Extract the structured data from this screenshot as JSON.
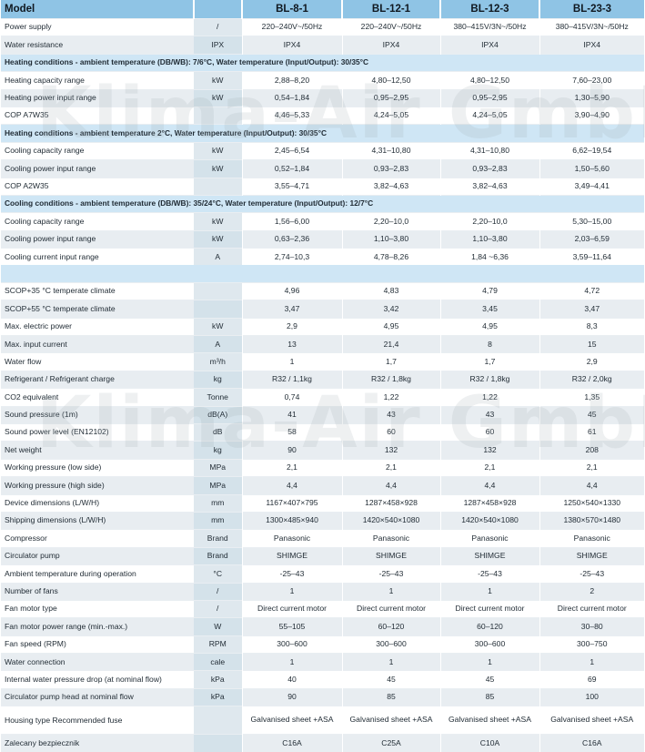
{
  "columns": [
    "Model",
    "",
    "BL-8-1",
    "BL-12-1",
    "BL-12-3",
    "BL-23-3"
  ],
  "watermark": "Klima-Air GmbH",
  "rows": [
    {
      "type": "row",
      "name": "Power supply",
      "unit": "/",
      "values": [
        "220–240V~/50Hz",
        "220–240V~/50Hz",
        "380–415V/3N~/50Hz",
        "380–415V/3N~/50Hz"
      ]
    },
    {
      "type": "row",
      "name": "Water resistance",
      "unit": "IPX",
      "values": [
        "IPX4",
        "IPX4",
        "IPX4",
        "IPX4"
      ]
    },
    {
      "type": "section",
      "text": "Heating conditions - ambient temperature (DB/WB): 7/6°C, Water temperature (Input/Output): 30/35°C"
    },
    {
      "type": "row",
      "name": "Heating capacity range",
      "unit": "kW",
      "values": [
        "2,88–8,20",
        "4,80–12,50",
        "4,80–12,50",
        "7,60–23,00"
      ]
    },
    {
      "type": "row",
      "name": "Heating power input range",
      "unit": "kW",
      "values": [
        "0,54–1,84",
        "0,95–2,95",
        "0,95–2,95",
        "1,30–5,90"
      ]
    },
    {
      "type": "row",
      "name": "COP A7W35",
      "unit": "",
      "values": [
        "4,46–5,33",
        "4,24–5,05",
        "4,24–5,05",
        "3,90–4,90"
      ]
    },
    {
      "type": "section",
      "text": "Heating conditions - ambient temperature 2°C, Water temperature (Input/Output): 30/35°C"
    },
    {
      "type": "row",
      "name": "Cooling capacity range",
      "unit": "kW",
      "values": [
        "2,45–6,54",
        "4,31–10,80",
        "4,31–10,80",
        "6,62–19,54"
      ]
    },
    {
      "type": "row",
      "name": "Cooling power input range",
      "unit": "kW",
      "values": [
        "0,52–1,84",
        "0,93–2,83",
        "0,93–2,83",
        "1,50–5,60"
      ]
    },
    {
      "type": "row",
      "name": "COP A2W35",
      "unit": "",
      "values": [
        "3,55–4,71",
        "3,82–4,63",
        "3,82–4,63",
        "3,49–4,41"
      ]
    },
    {
      "type": "section",
      "text": "Cooling conditions - ambient temperature (DB/WB): 35/24°C, Water temperature (Input/Output): 12/7°C"
    },
    {
      "type": "row",
      "name": "Cooling capacity range",
      "unit": "kW",
      "values": [
        "1,56–6,00",
        "2,20–10,0",
        "2,20–10,0",
        "5,30–15,00"
      ]
    },
    {
      "type": "row",
      "name": "Cooling power input range",
      "unit": "kW",
      "values": [
        "0,63–2,36",
        "1,10–3,80",
        "1,10–3,80",
        "2,03–6,59"
      ]
    },
    {
      "type": "row",
      "name": "Cooling current input range",
      "unit": "A",
      "values": [
        "2,74–10,3",
        "4,78–8,26",
        "1,84 ~6,36",
        "3,59–11,64"
      ]
    },
    {
      "type": "blank"
    },
    {
      "type": "row",
      "name": "SCOP+35 °C temperate climate",
      "unit": "",
      "values": [
        "4,96",
        "4,83",
        "4,79",
        "4,72"
      ]
    },
    {
      "type": "row",
      "name": "SCOP+55 °C temperate climate",
      "unit": "",
      "values": [
        "3,47",
        "3,42",
        "3,45",
        "3,47"
      ]
    },
    {
      "type": "row",
      "name": "Max. electric power",
      "unit": "kW",
      "values": [
        "2,9",
        "4,95",
        "4,95",
        "8,3"
      ]
    },
    {
      "type": "row",
      "name": "Max. input current",
      "unit": "A",
      "values": [
        "13",
        "21,4",
        "8",
        "15"
      ]
    },
    {
      "type": "row",
      "name": "Water flow",
      "unit": "m³/h",
      "values": [
        "1",
        "1,7",
        "1,7",
        "2,9"
      ]
    },
    {
      "type": "row",
      "name": "Refrigerant / Refrigerant charge",
      "unit": "kg",
      "values": [
        "R32 / 1,1kg",
        "R32 / 1,8kg",
        "R32 / 1,8kg",
        "R32 / 2,0kg"
      ]
    },
    {
      "type": "row",
      "name": "CO2 equivalent",
      "unit": "Tonne",
      "values": [
        "0,74",
        "1,22",
        "1,22",
        "1,35"
      ]
    },
    {
      "type": "row",
      "name": "Sound pressure (1m)",
      "unit": "dB(A)",
      "values": [
        "41",
        "43",
        "43",
        "45"
      ]
    },
    {
      "type": "row",
      "name": "Sound power level (EN12102)",
      "unit": "dB",
      "values": [
        "58",
        "60",
        "60",
        "61"
      ]
    },
    {
      "type": "row",
      "name": "Net weight",
      "unit": "kg",
      "values": [
        "90",
        "132",
        "132",
        "208"
      ]
    },
    {
      "type": "row",
      "name": "Working pressure (low side)",
      "unit": "MPa",
      "values": [
        "2,1",
        "2,1",
        "2,1",
        "2,1"
      ]
    },
    {
      "type": "row",
      "name": "Working pressure (high side)",
      "unit": "MPa",
      "values": [
        "4,4",
        "4,4",
        "4,4",
        "4,4"
      ]
    },
    {
      "type": "row",
      "name": "Device dimensions (L/W/H)",
      "unit": "mm",
      "values": [
        "1167×407×795",
        "1287×458×928",
        "1287×458×928",
        "1250×540×1330"
      ]
    },
    {
      "type": "row",
      "name": "Shipping dimensions (L/W/H)",
      "unit": "mm",
      "values": [
        "1300×485×940",
        "1420×540×1080",
        "1420×540×1080",
        "1380×570×1480"
      ]
    },
    {
      "type": "row",
      "name": "Compressor",
      "unit": "Brand",
      "values": [
        "Panasonic",
        "Panasonic",
        "Panasonic",
        "Panasonic"
      ]
    },
    {
      "type": "row",
      "name": "Circulator pump",
      "unit": "Brand",
      "values": [
        "SHIMGE",
        "SHIMGE",
        "SHIMGE",
        "SHIMGE"
      ]
    },
    {
      "type": "row",
      "name": "Ambient temperature during operation",
      "unit": "°C",
      "values": [
        "-25–43",
        "-25–43",
        "-25–43",
        "-25–43"
      ]
    },
    {
      "type": "row",
      "name": "Number of fans",
      "unit": "/",
      "values": [
        "1",
        "1",
        "1",
        "2"
      ]
    },
    {
      "type": "row",
      "name": "Fan motor type",
      "unit": "/",
      "values": [
        "Direct current motor",
        "Direct current motor",
        "Direct current motor",
        "Direct current motor"
      ]
    },
    {
      "type": "row",
      "name": "Fan motor power range (min.-max.)",
      "unit": "W",
      "values": [
        "55–105",
        "60–120",
        "60–120",
        "30–80"
      ]
    },
    {
      "type": "row",
      "name": "Fan speed (RPM)",
      "unit": "RPM",
      "values": [
        "300–600",
        "300–600",
        "300–600",
        "300–750"
      ]
    },
    {
      "type": "row",
      "name": "Water connection",
      "unit": "cale",
      "values": [
        "1",
        "1",
        "1",
        "1"
      ]
    },
    {
      "type": "row",
      "name": "Internal water pressure drop (at nominal flow)",
      "unit": "kPa",
      "values": [
        "40",
        "45",
        "45",
        "69"
      ]
    },
    {
      "type": "row",
      "name": "Circulator pump head at nominal flow",
      "unit": "kPa",
      "values": [
        "90",
        "85",
        "85",
        "100"
      ]
    },
    {
      "type": "tall",
      "name": "Housing type Recommended fuse",
      "unit": "",
      "values": [
        "Galvanised sheet +ASA",
        "Galvanised sheet +ASA",
        "Galvanised sheet +ASA",
        "Galvanised sheet +ASA"
      ]
    },
    {
      "type": "row",
      "name": "Zalecany bezpiecznik",
      "unit": "",
      "values": [
        "C16A",
        "C25A",
        "C10A",
        "C16A"
      ]
    }
  ]
}
